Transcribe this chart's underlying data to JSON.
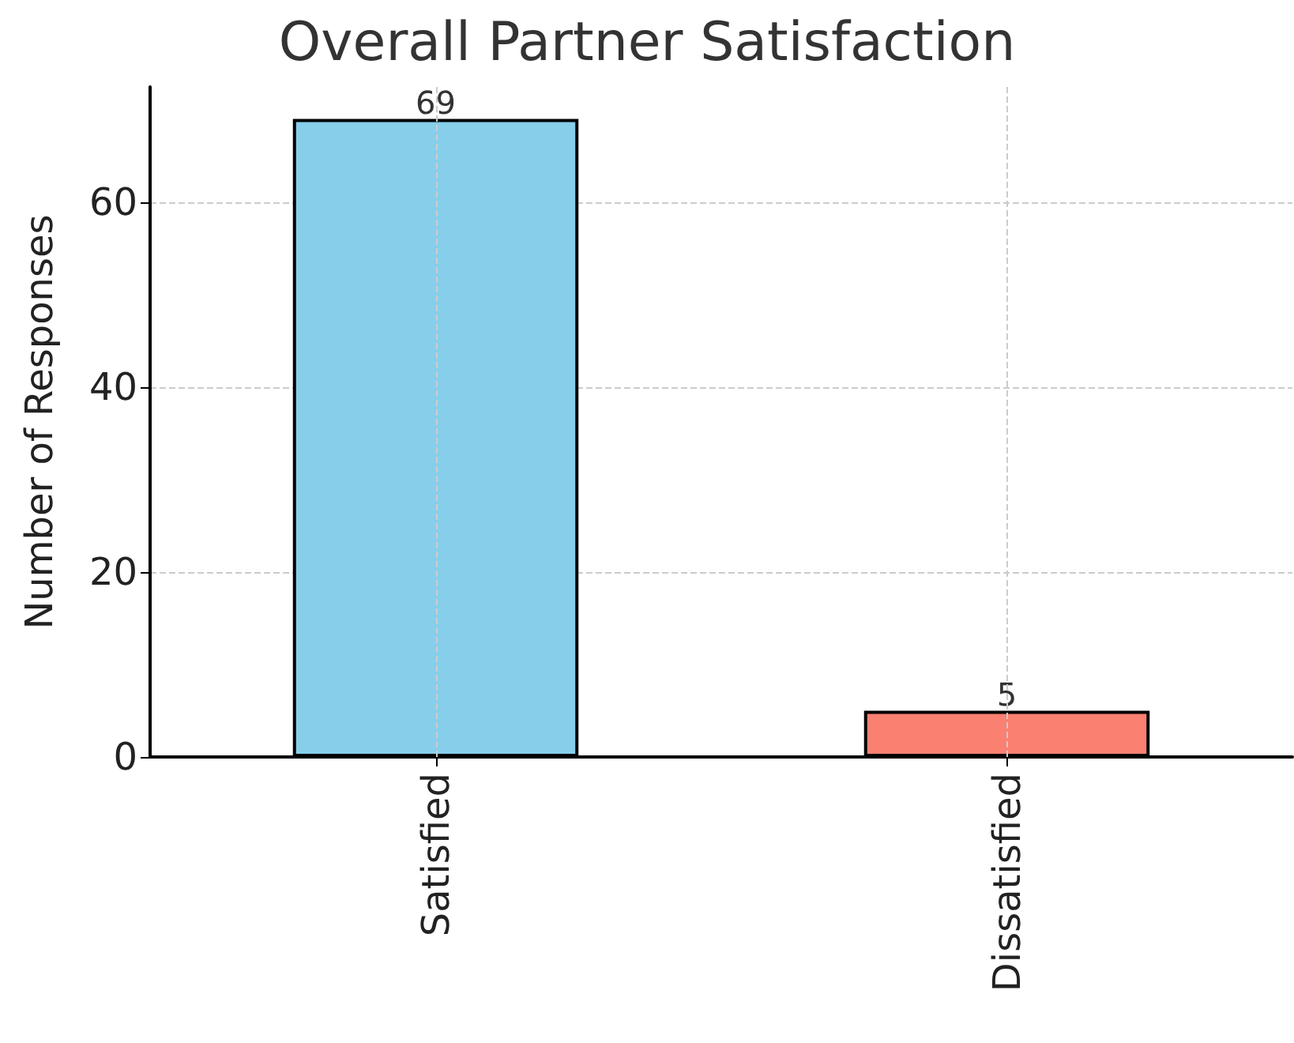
{
  "chart_data": {
    "type": "bar",
    "title": "Overall Partner Satisfaction",
    "ylabel": "Number of Responses",
    "categories": [
      "Satisfied",
      "Dissatisfied"
    ],
    "values": [
      69,
      5
    ],
    "colors": [
      "#87ceeb",
      "#fa8072"
    ],
    "ylim": [
      0,
      72.45
    ],
    "yticks": [
      0,
      20,
      40,
      60
    ],
    "grid": true,
    "data_labels": true
  }
}
